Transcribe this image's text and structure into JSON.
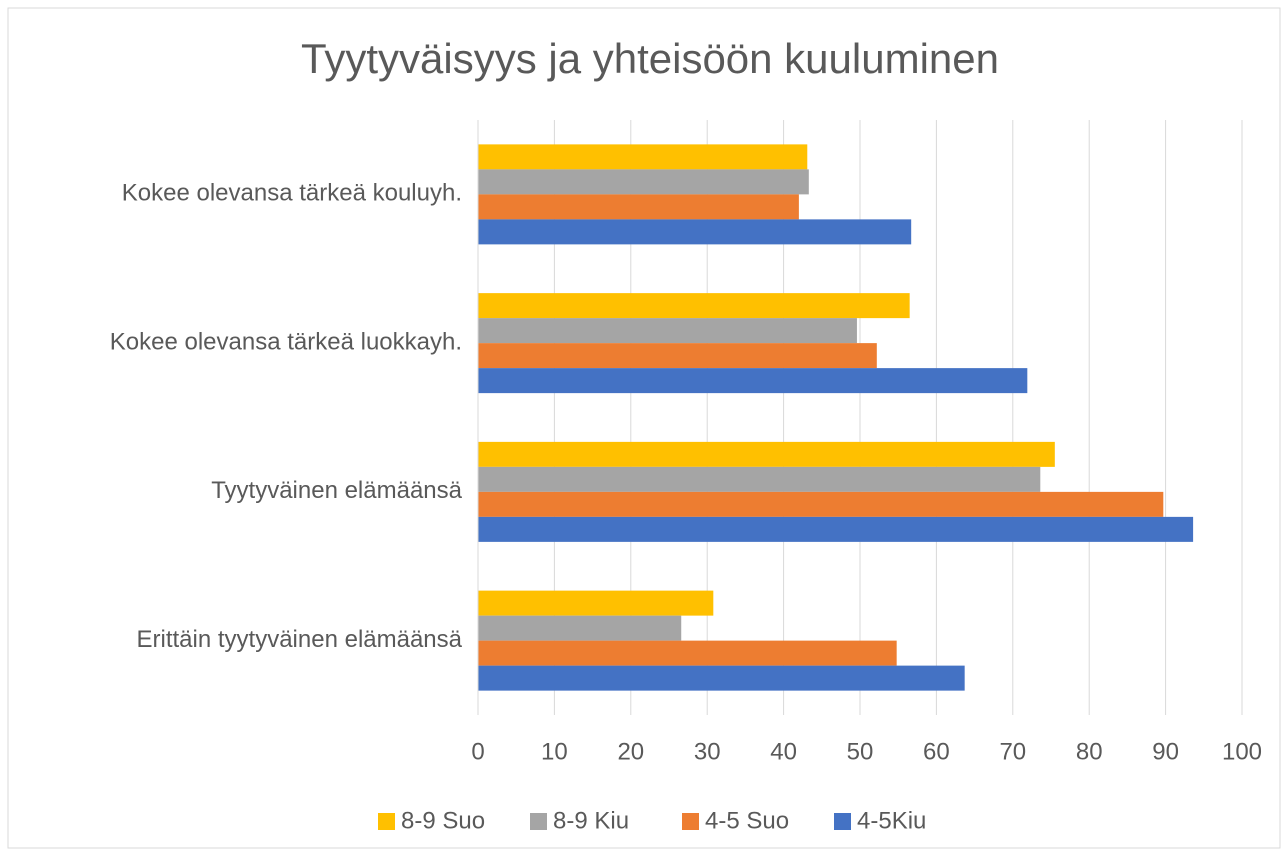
{
  "chart_data": {
    "type": "hbar",
    "title": "Tyytyväisyys ja yhteisöön kuuluminen",
    "categories": [
      "Kokee olevansa tärkeä kouluyh.",
      "Kokee olevansa tärkeä luokkayh.",
      "Tyytyväinen elämäänsä",
      "Erittäin tyytyväinen elämäänsä"
    ],
    "series": [
      {
        "name": "8-9 Suo",
        "color": "#ffc000",
        "values": [
          43.1,
          56.5,
          75.5,
          30.8
        ]
      },
      {
        "name": "8-9 Kiu",
        "color": "#a5a5a5",
        "values": [
          43.3,
          49.6,
          73.6,
          26.6
        ]
      },
      {
        "name": "4-5 Suo",
        "color": "#ed7d31",
        "values": [
          42.0,
          52.2,
          89.7,
          54.8
        ]
      },
      {
        "name": "4-5Kiu",
        "color": "#4472c4",
        "values": [
          56.7,
          71.9,
          93.6,
          63.7
        ]
      }
    ],
    "xlim": [
      0,
      100
    ],
    "xticks": [
      0,
      10,
      20,
      30,
      40,
      50,
      60,
      70,
      80,
      90,
      100
    ],
    "grid": true,
    "legend": "bottom"
  }
}
